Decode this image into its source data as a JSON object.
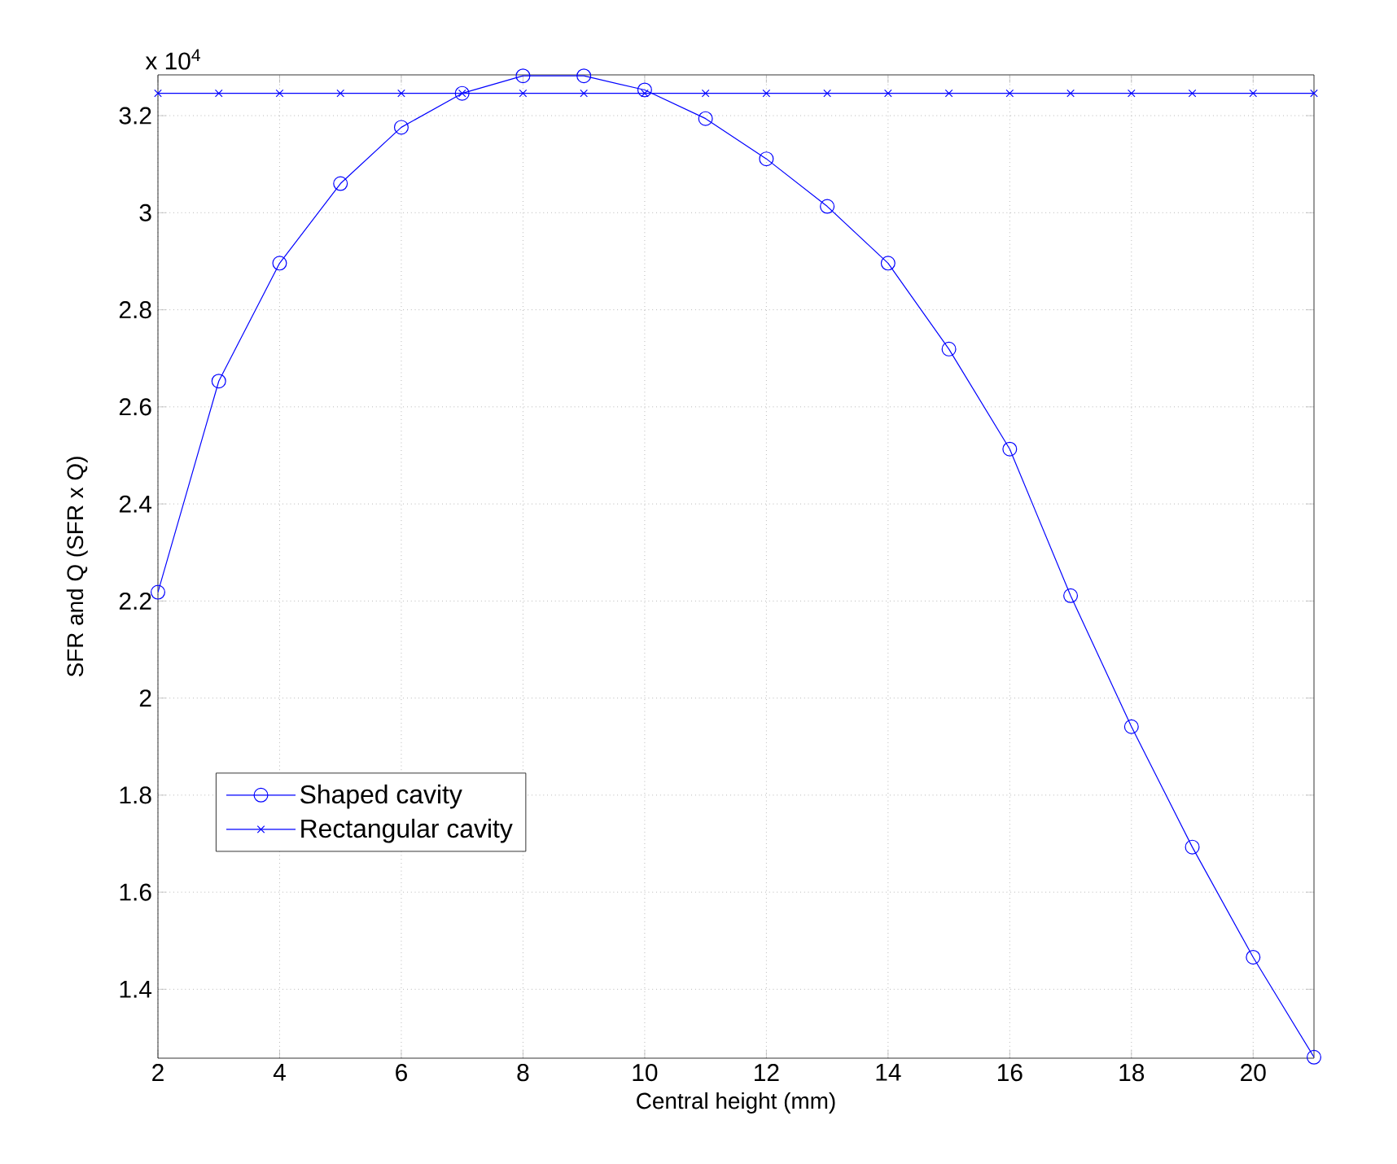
{
  "chart_data": {
    "type": "line",
    "xlabel": "Central height (mm)",
    "ylabel": "SFR and Q (SFR x Q)",
    "annotations": [
      "x 10$^{4}$"
    ],
    "x": [
      2,
      3,
      4,
      5,
      6,
      7,
      8,
      9,
      10,
      11,
      12,
      13,
      14,
      15,
      16,
      17,
      18,
      19,
      20,
      21
    ],
    "series": [
      {
        "name": "Shaped cavity",
        "color": "#0000ff",
        "marker": "circle",
        "values": [
          2.218,
          2.653,
          2.896,
          3.06,
          3.176,
          3.246,
          3.282,
          3.282,
          3.253,
          3.194,
          3.111,
          3.013,
          2.896,
          2.719,
          2.513,
          2.211,
          1.941,
          1.693,
          1.466,
          1.26
        ]
      },
      {
        "name": "Rectangular cavity",
        "color": "#0000ff",
        "marker": "cross",
        "values": [
          3.246,
          3.246,
          3.246,
          3.246,
          3.246,
          3.246,
          3.246,
          3.246,
          3.246,
          3.246,
          3.246,
          3.246,
          3.246,
          3.246,
          3.246,
          3.246,
          3.246,
          3.246,
          3.246,
          3.246
        ]
      }
    ],
    "xlim": [
      2,
      21
    ],
    "ylim": [
      1.258,
      3.284
    ],
    "xticks": [
      2,
      4,
      6,
      8,
      10,
      12,
      14,
      16,
      18,
      20
    ],
    "yticks": [
      1.4,
      1.6,
      1.8,
      2,
      2.2,
      2.4,
      2.6,
      2.8,
      3,
      3.2
    ],
    "grid": true,
    "legend": "bottom left",
    "line_style": "solid"
  }
}
